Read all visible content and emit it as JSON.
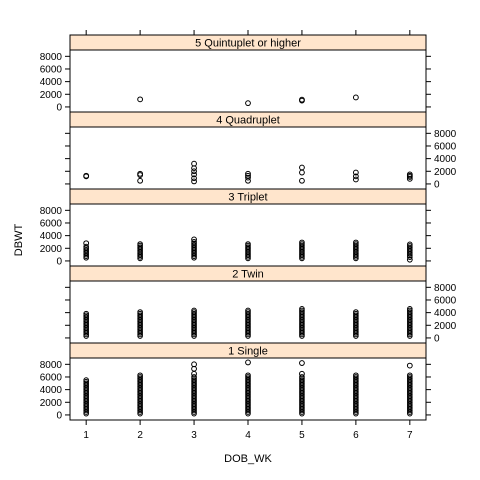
{
  "chart_data": {
    "type": "scatter",
    "layout": "trellis",
    "xlabel": "DOB_WK",
    "ylabel": "DBWT",
    "x_ticks": [
      1,
      2,
      3,
      4,
      5,
      6,
      7
    ],
    "y_ticks": [
      0,
      2000,
      4000,
      6000,
      8000
    ],
    "y_tick_labels": [
      "0",
      "2000",
      "4000",
      "6000",
      "8000"
    ],
    "xlim": [
      0.7,
      7.3
    ],
    "ylim": [
      -800,
      9000
    ],
    "panels": [
      {
        "label": "5 Quintuplet or higher",
        "points": [
          [
            2,
            1200
          ],
          [
            4,
            600
          ],
          [
            5,
            1000
          ],
          [
            5,
            1150
          ],
          [
            6,
            1500
          ]
        ]
      },
      {
        "label": "4 Quadruplet",
        "points": [
          [
            1,
            1200
          ],
          [
            1,
            1300
          ],
          [
            2,
            500
          ],
          [
            2,
            1400
          ],
          [
            2,
            1600
          ],
          [
            3,
            400
          ],
          [
            3,
            900
          ],
          [
            3,
            1500
          ],
          [
            3,
            2000
          ],
          [
            3,
            2500
          ],
          [
            3,
            3200
          ],
          [
            4,
            500
          ],
          [
            4,
            1000
          ],
          [
            4,
            1300
          ],
          [
            4,
            1600
          ],
          [
            5,
            500
          ],
          [
            5,
            1800
          ],
          [
            5,
            2600
          ],
          [
            6,
            700
          ],
          [
            6,
            1200
          ],
          [
            6,
            1800
          ],
          [
            7,
            800
          ],
          [
            7,
            1100
          ],
          [
            7,
            1300
          ],
          [
            7,
            1500
          ]
        ],
        "ranges": []
      },
      {
        "label": "3 Triplet",
        "points": [
          [
            1,
            2800
          ],
          [
            3,
            3400
          ],
          [
            7,
            200
          ]
        ],
        "ranges": [
          [
            1,
            500,
            2500
          ],
          [
            2,
            400,
            2900
          ],
          [
            3,
            500,
            3200
          ],
          [
            4,
            400,
            2800
          ],
          [
            5,
            400,
            3000
          ],
          [
            6,
            400,
            3100
          ],
          [
            7,
            600,
            2700
          ]
        ]
      },
      {
        "label": "2 Twin",
        "points": [],
        "ranges": [
          [
            1,
            300,
            4000
          ],
          [
            2,
            300,
            4300
          ],
          [
            3,
            300,
            4500
          ],
          [
            4,
            300,
            4400
          ],
          [
            5,
            300,
            4600
          ],
          [
            6,
            300,
            4200
          ],
          [
            7,
            300,
            4600
          ]
        ]
      },
      {
        "label": "1 Single",
        "points": [
          [
            3,
            6500
          ],
          [
            3,
            7300
          ],
          [
            3,
            8000
          ],
          [
            4,
            8300
          ],
          [
            5,
            6500
          ],
          [
            5,
            8200
          ],
          [
            7,
            7800
          ]
        ],
        "ranges": [
          [
            1,
            200,
            5700
          ],
          [
            2,
            200,
            6500
          ],
          [
            3,
            200,
            6200
          ],
          [
            4,
            200,
            6300
          ],
          [
            5,
            200,
            6100
          ],
          [
            6,
            200,
            6400
          ],
          [
            7,
            200,
            6400
          ]
        ]
      }
    ]
  }
}
